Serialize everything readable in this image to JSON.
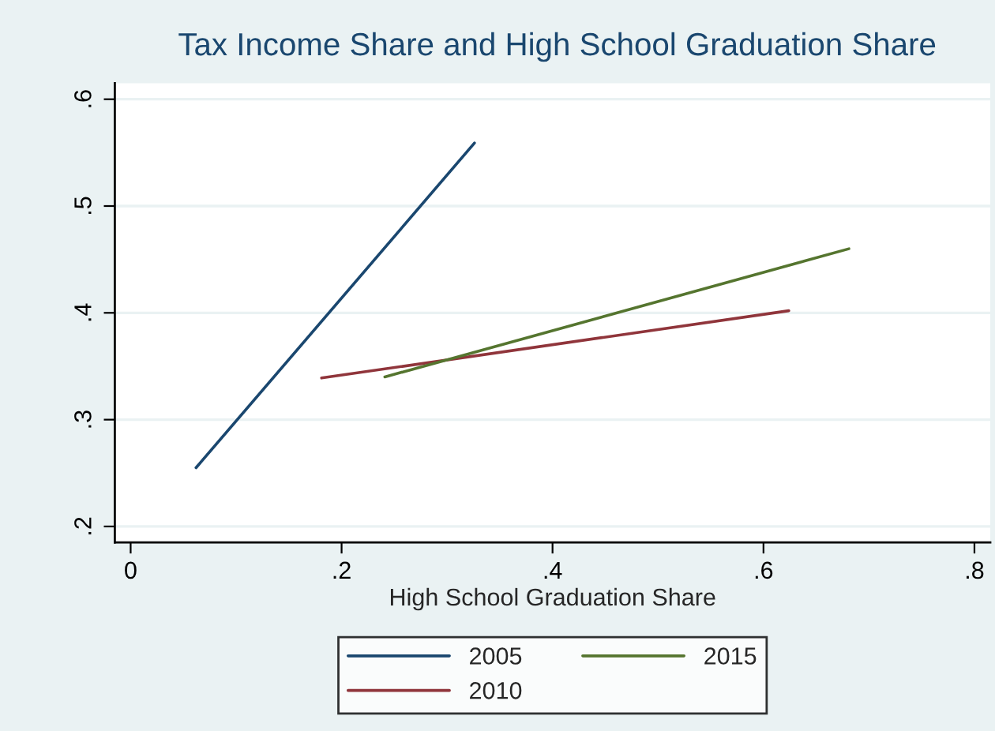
{
  "chart_data": {
    "type": "line",
    "title": "Tax Income Share and High School Graduation Share",
    "xlabel": "High School Graduation Share",
    "series": [
      {
        "name": "2005",
        "color": "#1a476f",
        "x": [
          0.062,
          0.326
        ],
        "values": [
          0.255,
          0.559
        ]
      },
      {
        "name": "2010",
        "color": "#90353b",
        "x": [
          0.181,
          0.624
        ],
        "values": [
          0.339,
          0.402
        ]
      },
      {
        "name": "2015",
        "color": "#55752f",
        "x": [
          0.241,
          0.681
        ],
        "values": [
          0.34,
          0.46
        ]
      }
    ],
    "xlim": [
      -0.015,
      0.815
    ],
    "ylim": [
      0.185,
      0.615
    ],
    "xticks": [
      {
        "value": 0,
        "label": "0"
      },
      {
        "value": 0.2,
        "label": ".2"
      },
      {
        "value": 0.4,
        "label": ".4"
      },
      {
        "value": 0.6,
        "label": ".6"
      },
      {
        "value": 0.8,
        "label": ".8"
      }
    ],
    "yticks": [
      {
        "value": 0.2,
        "label": ".2"
      },
      {
        "value": 0.3,
        "label": ".3"
      },
      {
        "value": 0.4,
        "label": ".4"
      },
      {
        "value": 0.5,
        "label": ".5"
      },
      {
        "value": 0.6,
        "label": ".6"
      }
    ],
    "grid": "y",
    "legend": "bottom",
    "marker": "none",
    "line_style": "solid"
  }
}
